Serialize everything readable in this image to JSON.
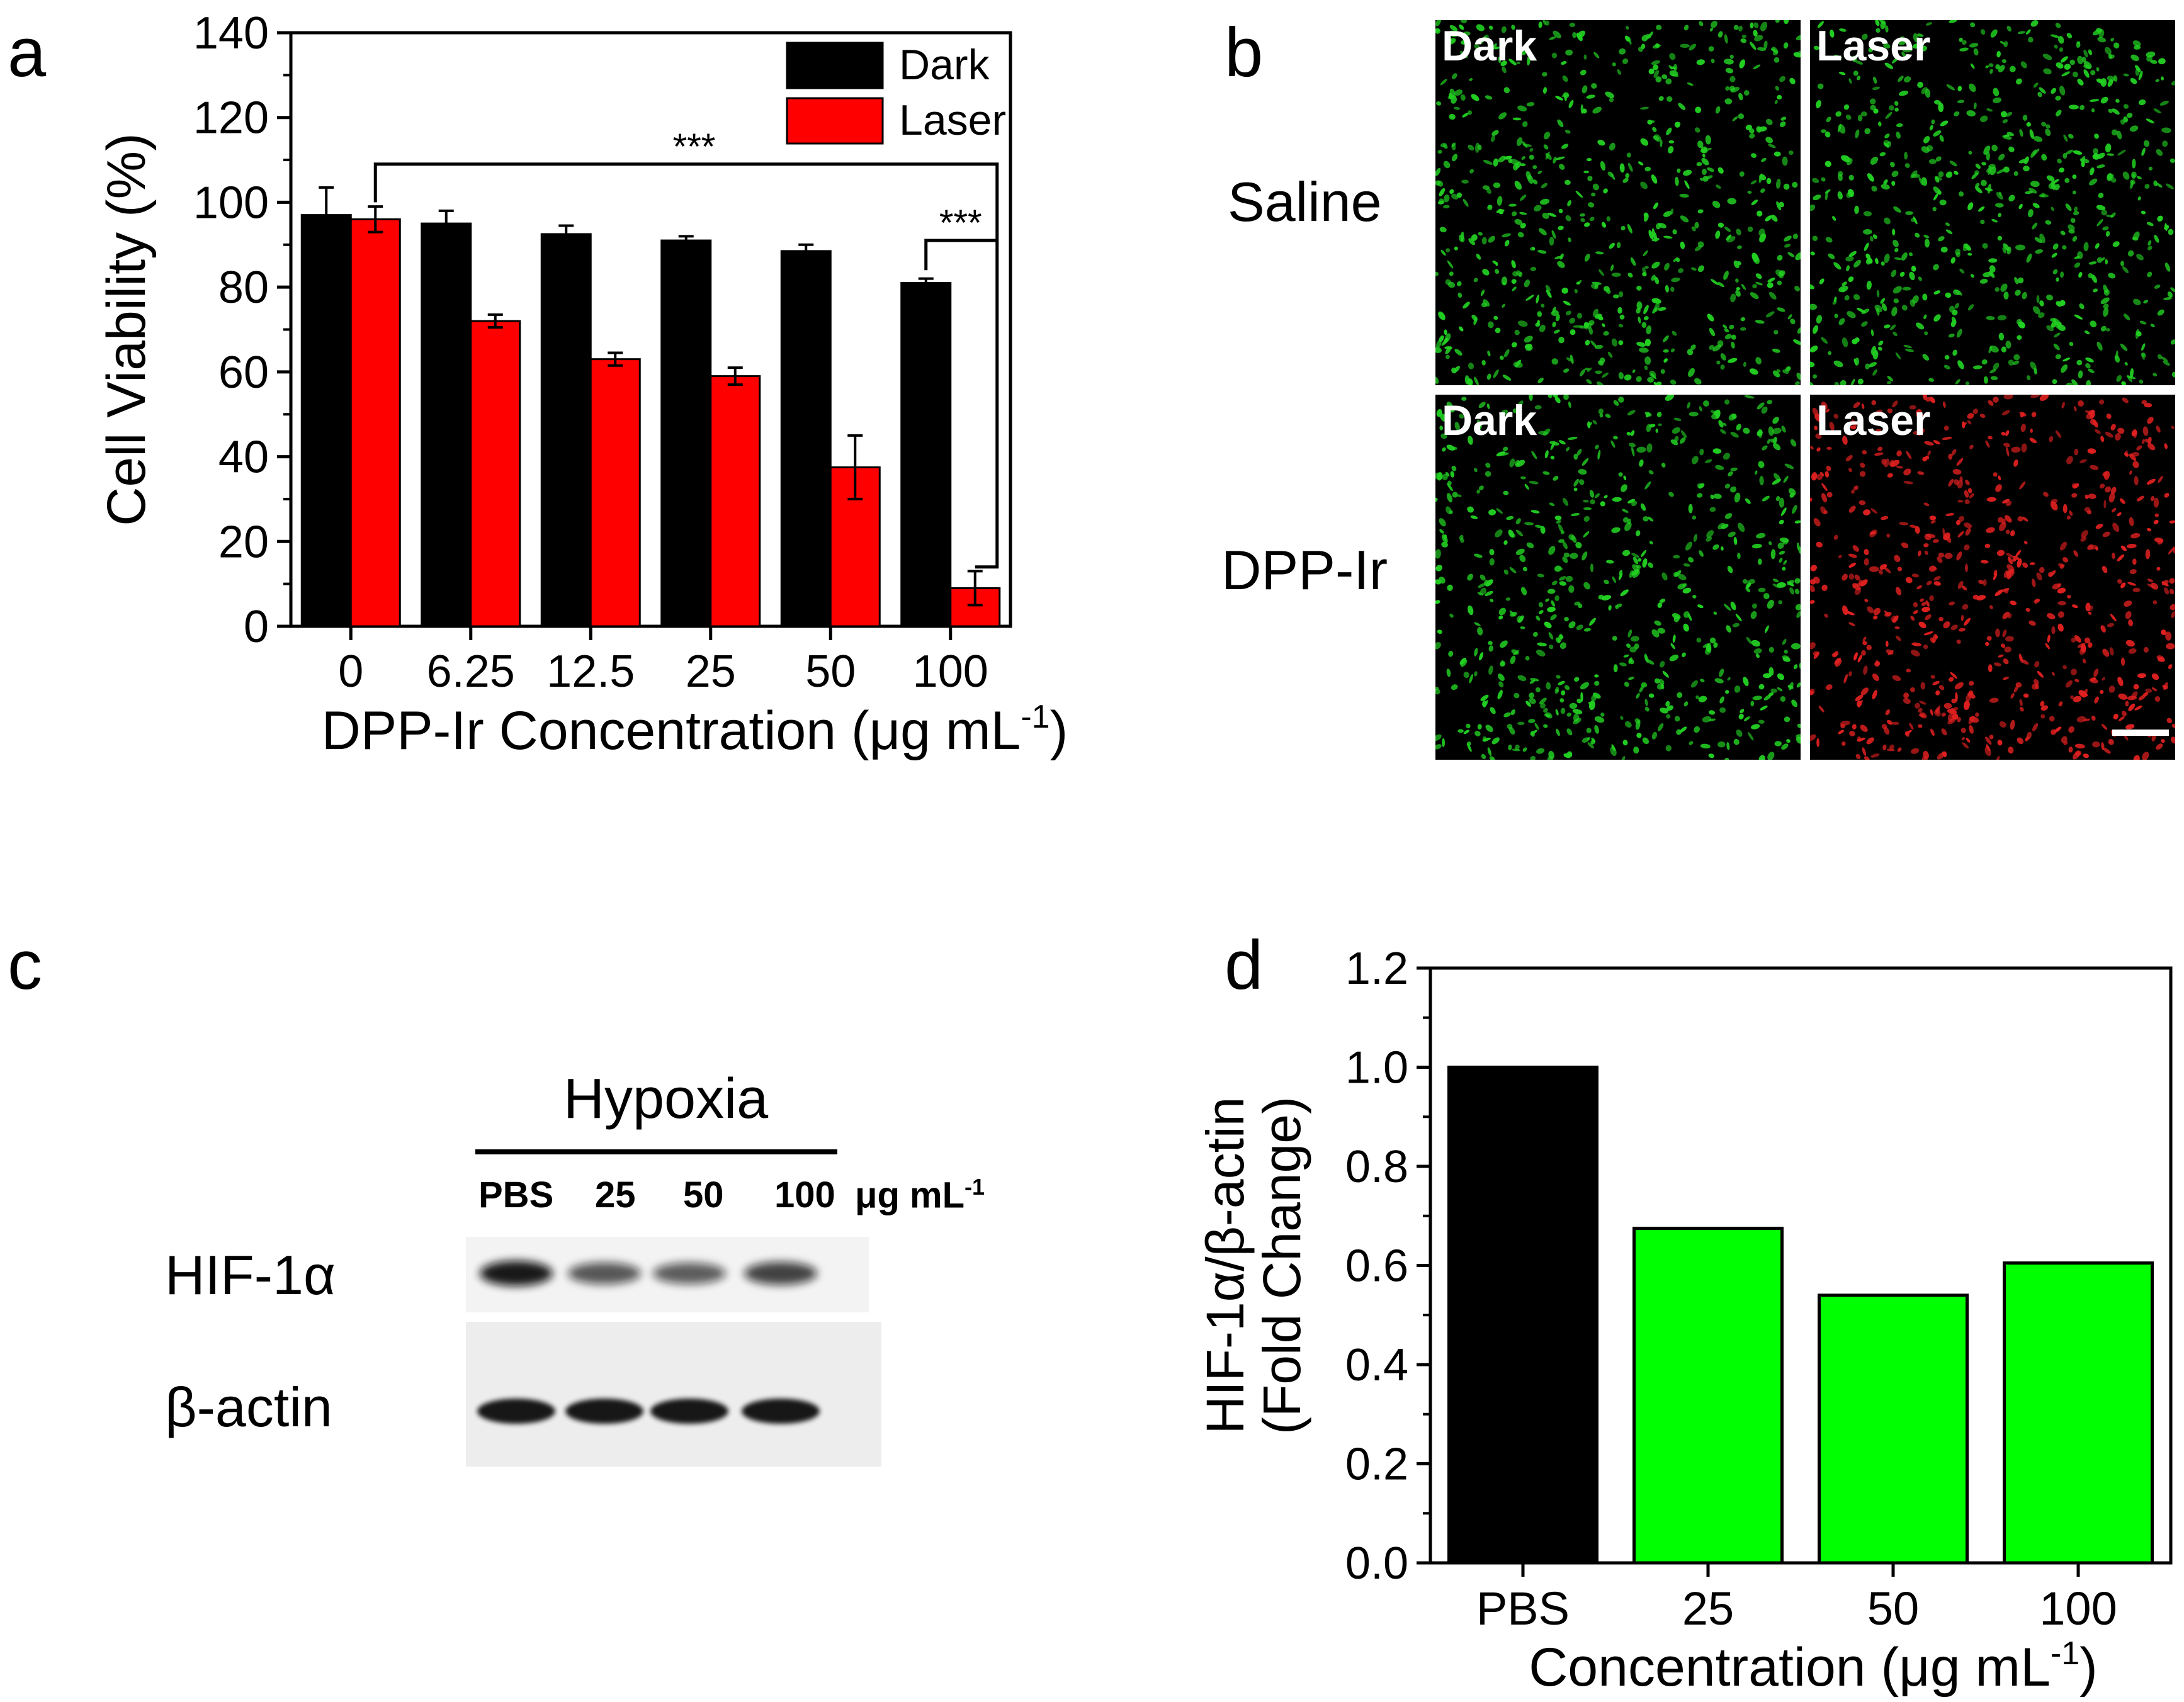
{
  "panels": {
    "a": {
      "letter": "a"
    },
    "b": {
      "letter": "b",
      "col_dark": "Dark",
      "col_laser": "Laser",
      "row_saline": "Saline",
      "row_dpp": "DPP-Ir",
      "colors": {
        "green": "#22d022",
        "red": "#e02020",
        "background": "#000000"
      }
    },
    "c": {
      "letter": "c",
      "condition": "Hypoxia",
      "lanes": [
        "PBS",
        "25",
        "50",
        "100"
      ],
      "unit_prefix": "μg mL",
      "unit_sup": "-1",
      "proteins": [
        "HIF-1α",
        "β-actin"
      ],
      "hif_band_intensity": [
        1.0,
        0.55,
        0.5,
        0.7
      ],
      "actin_band_intensity": [
        1.0,
        1.0,
        1.0,
        1.0
      ]
    },
    "d": {
      "letter": "d"
    }
  },
  "chart_data": [
    {
      "type": "bar",
      "panel": "a",
      "categories": [
        "0",
        "6.25",
        "12.5",
        "25",
        "50",
        "100"
      ],
      "series": [
        {
          "name": "Dark",
          "color": "#000000",
          "values": [
            97,
            95,
            92.5,
            91,
            88.5,
            81
          ],
          "errors": [
            6.5,
            3,
            2,
            1,
            1.5,
            1
          ]
        },
        {
          "name": "Laser",
          "color": "#ff0000",
          "values": [
            96,
            72,
            63,
            59,
            37.5,
            9
          ],
          "errors": [
            3,
            1.5,
            1.5,
            2,
            7.5,
            4
          ]
        }
      ],
      "xlabel_prefix": "DPP-Ir Concentration (μg mL",
      "xlabel_sup": "-1",
      "xlabel_suffix": ")",
      "ylabel": "Cell Viability (%)",
      "ylim": [
        0,
        140
      ],
      "yticks": [
        "0",
        "20",
        "40",
        "60",
        "80",
        "100",
        "120",
        "140"
      ],
      "significance": [
        "***",
        "***"
      ],
      "legend_position": "top-right"
    },
    {
      "type": "bar",
      "panel": "d",
      "categories": [
        "PBS",
        "25",
        "50",
        "100"
      ],
      "values": [
        1.0,
        0.675,
        0.54,
        0.605
      ],
      "colors": [
        "#000000",
        "#00ff00",
        "#00ff00",
        "#00ff00"
      ],
      "xlabel_prefix": "Concentration (μg mL",
      "xlabel_sup": "-1",
      "xlabel_suffix": ")",
      "ylabel_line1": "HIF-1α/β-actin",
      "ylabel_line2": "(Fold Change)",
      "ylim": [
        0,
        1.2
      ],
      "yticks": [
        "0.0",
        "0.2",
        "0.4",
        "0.6",
        "0.8",
        "1.0",
        "1.2"
      ]
    }
  ]
}
